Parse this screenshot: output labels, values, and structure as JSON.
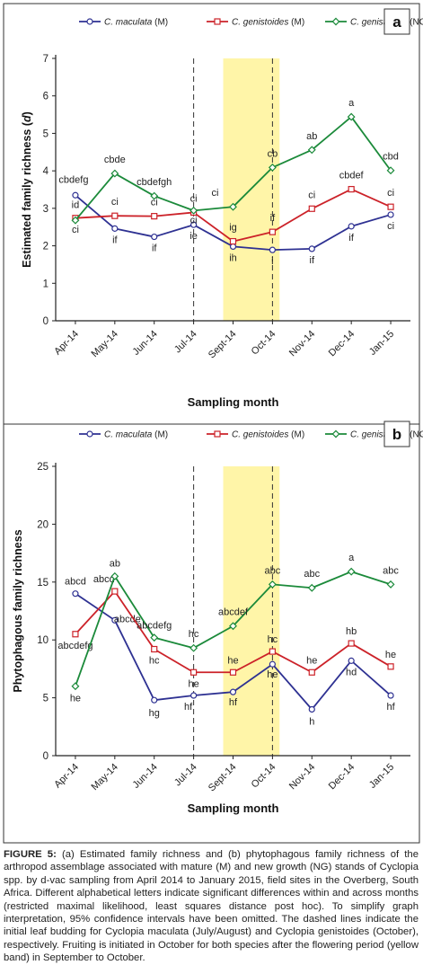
{
  "chart_data": [
    {
      "type": "line",
      "panel_label": "a",
      "ylabel": "Estimated family richness (d)",
      "xlabel": "Sampling month",
      "categories": [
        "Apr-14",
        "May-14",
        "Jun-14",
        "Jul-14",
        "Sept-14",
        "Oct-14",
        "Nov-14",
        "Dec-14",
        "Jan-15"
      ],
      "ylim": [
        0,
        7
      ],
      "yticks": [
        0,
        1,
        2,
        3,
        4,
        5,
        6,
        7
      ],
      "legend_placement": "top",
      "flowering_band": [
        "Sept-14",
        "Oct-14"
      ],
      "dashed_lines": [
        "Jul-14",
        "Oct-14"
      ],
      "series": [
        {
          "name": "C. maculata (M)",
          "suffix": "(M)",
          "color": "#2e3192",
          "marker": "circle",
          "values": [
            3.35,
            2.46,
            2.24,
            2.56,
            1.98,
            1.89,
            1.92,
            2.52,
            2.83
          ],
          "labels": [
            "cbdefg",
            "if",
            "if",
            "ie",
            "ih",
            "i",
            "if",
            "if",
            "ci"
          ]
        },
        {
          "name": "C. genistoides (M)",
          "suffix": "(M)",
          "color": "#cc2229",
          "marker": "square",
          "values": [
            2.74,
            2.8,
            2.79,
            2.89,
            2.12,
            2.37,
            2.99,
            3.51,
            3.04
          ],
          "labels": [
            "id",
            "ci",
            "ci",
            "ci",
            "ig",
            "if",
            "ci",
            "cbdef",
            "ci"
          ]
        },
        {
          "name": "C. genistoides (NG)",
          "suffix": "(NG)",
          "color": "#1b8a3a",
          "marker": "diamond",
          "values": [
            2.68,
            3.93,
            3.33,
            2.94,
            3.04,
            4.09,
            4.56,
            5.44,
            4.01
          ],
          "labels": [
            "ci",
            "cbde",
            "cbdefgh",
            "ci",
            "ci",
            "cb",
            "ab",
            "a",
            "cbd"
          ]
        }
      ]
    },
    {
      "type": "line",
      "panel_label": "b",
      "ylabel": "Phytophagous family richness",
      "xlabel": "Sampling month",
      "categories": [
        "Apr-14",
        "May-14",
        "Jun-14",
        "Jul-14",
        "Sept-14",
        "Oct-14",
        "Nov-14",
        "Dec-14",
        "Jan-15"
      ],
      "ylim": [
        0,
        25
      ],
      "yticks": [
        0,
        5,
        10,
        15,
        20,
        25
      ],
      "legend_placement": "top",
      "flowering_band": [
        "Sept-14",
        "Oct-14"
      ],
      "dashed_lines": [
        "Jul-14",
        "Oct-14"
      ],
      "series": [
        {
          "name": "C. maculata (M)",
          "suffix": "(M)",
          "color": "#2e3192",
          "marker": "circle",
          "values": [
            14.0,
            11.7,
            4.8,
            5.2,
            5.5,
            7.9,
            4.0,
            8.2,
            5.2
          ],
          "labels": [
            "abcd",
            "abcde",
            "hg",
            "hf",
            "hf",
            "he",
            "h",
            "hd",
            "hf"
          ]
        },
        {
          "name": "C. genistoides (M)",
          "suffix": "(M)",
          "color": "#cc2229",
          "marker": "square",
          "values": [
            10.5,
            14.2,
            9.2,
            7.2,
            7.2,
            9.0,
            7.2,
            9.7,
            7.7
          ],
          "labels": [
            "abcdefg",
            "abcd",
            "hc",
            "he",
            "he",
            "hc",
            "he",
            "hb",
            "he"
          ]
        },
        {
          "name": "C. genistoides (NG)",
          "suffix": "(NG)",
          "color": "#1b8a3a",
          "marker": "diamond",
          "values": [
            6.0,
            15.5,
            10.2,
            9.3,
            11.2,
            14.8,
            14.5,
            15.9,
            14.8
          ],
          "labels": [
            "he",
            "ab",
            "abcdefg",
            "hc",
            "abcdef",
            "abc",
            "abc",
            "a",
            "abc"
          ]
        }
      ]
    }
  ],
  "caption": {
    "figure_label": "FIGURE 5:",
    "text": "(a) Estimated family richness and (b) phytophagous family richness of the arthropod assemblage associated with mature (M) and new growth (NG) stands of Cyclopia spp. by d-vac sampling from April 2014 to January 2015, field sites in the Overberg, South Africa. Different alphabetical letters indicate significant differences within and across months (restricted maximal likelihood, least squares distance post hoc). To simplify graph interpretation, 95% confidence intervals have been omitted. The dashed lines indicate the initial leaf budding for Cyclopia maculata (July/August) and Cyclopia genistoides (October), respectively. Fruiting is initiated in October for both species after the flowering period (yellow band) in September to October."
  }
}
